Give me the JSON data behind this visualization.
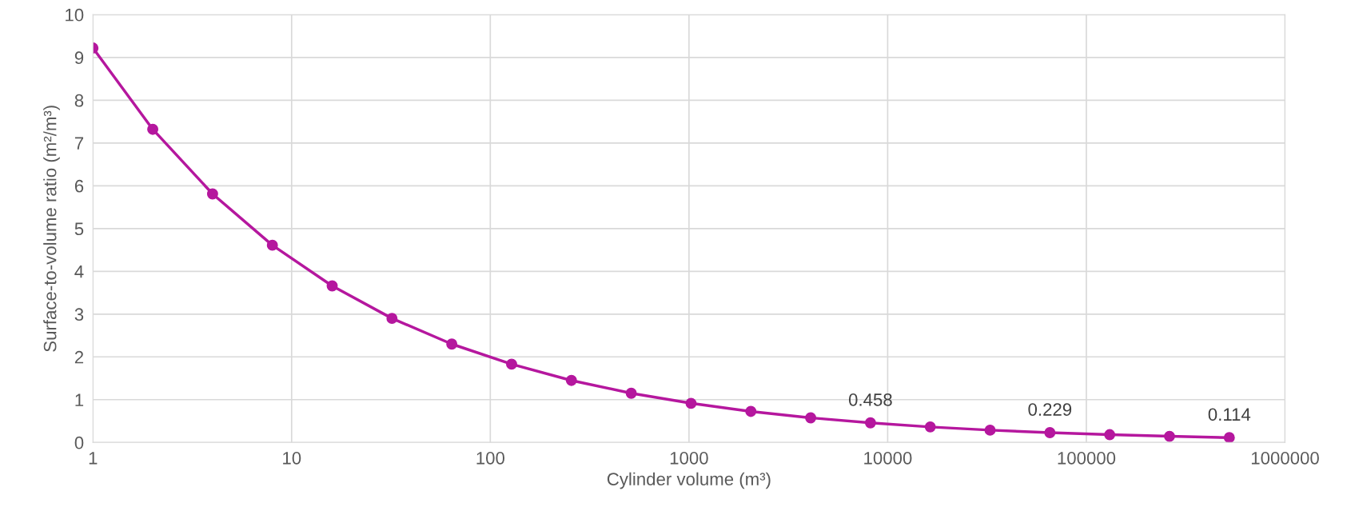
{
  "chart_data": {
    "type": "line",
    "xlabel": "Cylinder volume (m³)",
    "ylabel": "Surface-to-volume ratio (m²/m³)",
    "x": [
      1,
      2,
      4,
      8,
      16,
      32,
      64,
      128,
      256,
      512,
      1024,
      2048,
      4096,
      8192,
      16384,
      32768,
      65536,
      131072,
      262144,
      524288
    ],
    "series": [
      {
        "color": "#b5179e",
        "values": [
          9.22,
          7.32,
          5.81,
          4.61,
          3.66,
          2.9,
          2.3,
          1.83,
          1.45,
          1.15,
          0.915,
          0.726,
          0.576,
          0.458,
          0.363,
          0.288,
          0.229,
          0.182,
          0.144,
          0.114
        ],
        "value_labels": [
          null,
          null,
          null,
          null,
          null,
          null,
          null,
          null,
          null,
          null,
          null,
          null,
          null,
          "0.458",
          null,
          null,
          "0.229",
          null,
          null,
          "0.114"
        ]
      }
    ],
    "log": "x",
    "xlim": [
      1,
      1000000
    ],
    "xticks": [
      1,
      10,
      100,
      1000,
      10000,
      100000,
      1000000
    ],
    "ylim": [
      0,
      10
    ],
    "yticks": [
      0,
      1,
      2,
      3,
      4,
      5,
      6,
      7,
      8,
      9,
      10
    ],
    "grid": true,
    "marker": "circle",
    "line_style": "solid"
  }
}
